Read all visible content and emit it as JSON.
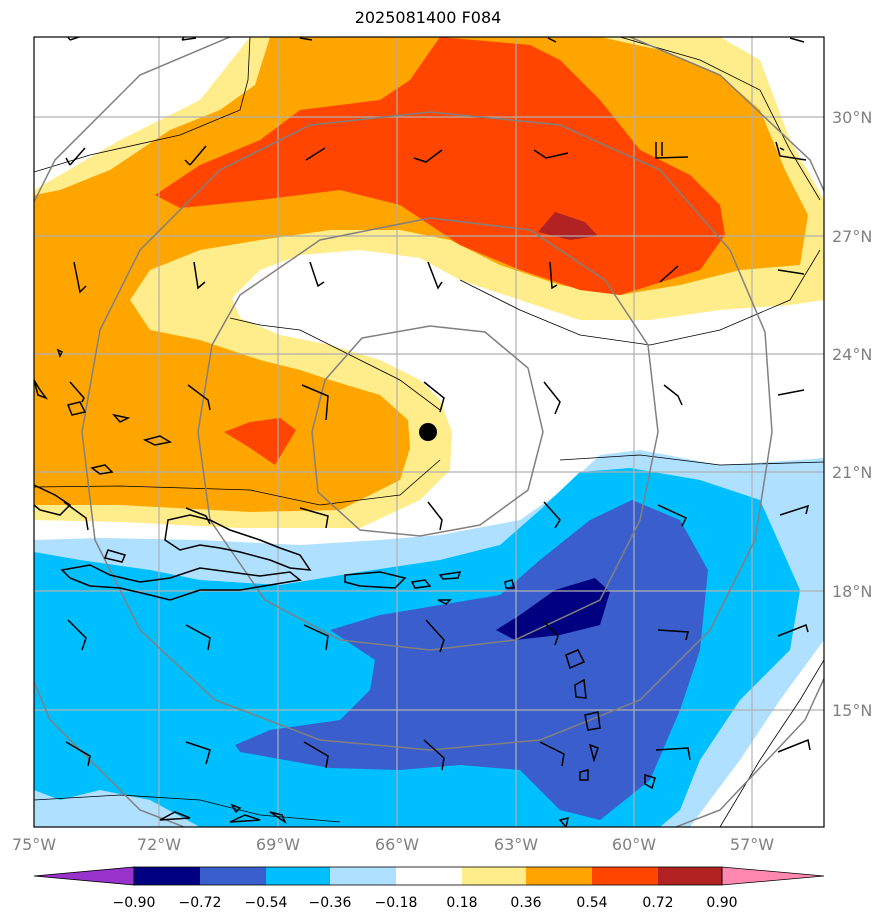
{
  "title": "2025081400 F084",
  "map": {
    "lon_labels": [
      "75°W",
      "72°W",
      "69°W",
      "66°W",
      "63°W",
      "60°W",
      "57°W"
    ],
    "lat_labels": [
      "30°N",
      "27°N",
      "24°N",
      "21°N",
      "18°N",
      "15°N"
    ],
    "storm_center": {
      "lon": -65.0,
      "lat": 22.0
    },
    "range_rings": 4
  },
  "colorbar": {
    "levels": [
      "−0.90",
      "−0.72",
      "−0.54",
      "−0.36",
      "−0.18",
      "0.18",
      "0.36",
      "0.54",
      "0.72",
      "0.90"
    ],
    "colors": [
      "#9933cc",
      "#000080",
      "#3a5fcd",
      "#00bfff",
      "#b0e0ff",
      "#ffffff",
      "#ffec8b",
      "#ffa500",
      "#ff4500",
      "#b22222",
      "#ff88b0"
    ]
  }
}
